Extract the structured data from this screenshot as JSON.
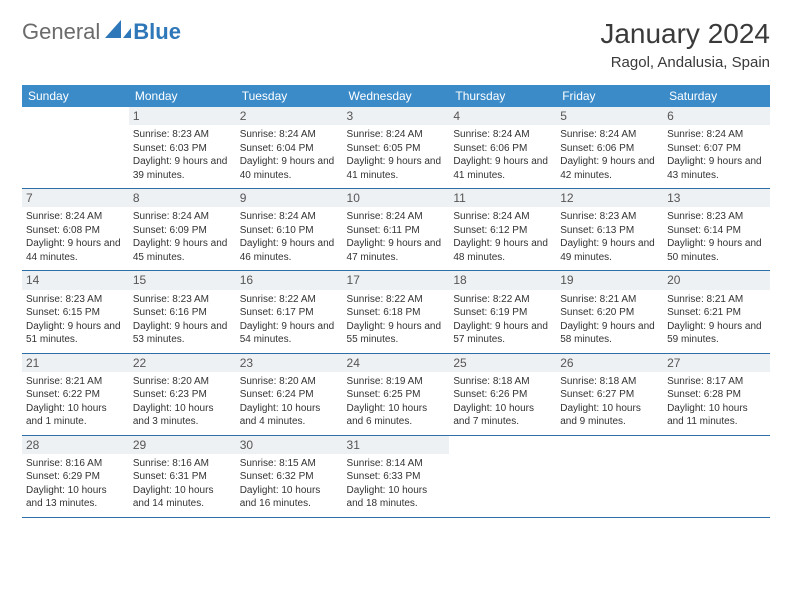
{
  "brand": {
    "part1": "General",
    "part2": "Blue"
  },
  "title": "January 2024",
  "location": "Ragol, Andalusia, Spain",
  "colors": {
    "header_bg": "#3b8bc9",
    "header_fg": "#ffffff",
    "row_border": "#2f6ea6",
    "daynum_bg": "#eef1f3",
    "logo_blue": "#2e77b8",
    "logo_gray": "#6b6b6b"
  },
  "daysOfWeek": [
    "Sunday",
    "Monday",
    "Tuesday",
    "Wednesday",
    "Thursday",
    "Friday",
    "Saturday"
  ],
  "startOffset": 1,
  "cells": [
    {
      "n": 1,
      "sr": "8:23 AM",
      "ss": "6:03 PM",
      "dl": "9 hours and 39 minutes."
    },
    {
      "n": 2,
      "sr": "8:24 AM",
      "ss": "6:04 PM",
      "dl": "9 hours and 40 minutes."
    },
    {
      "n": 3,
      "sr": "8:24 AM",
      "ss": "6:05 PM",
      "dl": "9 hours and 41 minutes."
    },
    {
      "n": 4,
      "sr": "8:24 AM",
      "ss": "6:06 PM",
      "dl": "9 hours and 41 minutes."
    },
    {
      "n": 5,
      "sr": "8:24 AM",
      "ss": "6:06 PM",
      "dl": "9 hours and 42 minutes."
    },
    {
      "n": 6,
      "sr": "8:24 AM",
      "ss": "6:07 PM",
      "dl": "9 hours and 43 minutes."
    },
    {
      "n": 7,
      "sr": "8:24 AM",
      "ss": "6:08 PM",
      "dl": "9 hours and 44 minutes."
    },
    {
      "n": 8,
      "sr": "8:24 AM",
      "ss": "6:09 PM",
      "dl": "9 hours and 45 minutes."
    },
    {
      "n": 9,
      "sr": "8:24 AM",
      "ss": "6:10 PM",
      "dl": "9 hours and 46 minutes."
    },
    {
      "n": 10,
      "sr": "8:24 AM",
      "ss": "6:11 PM",
      "dl": "9 hours and 47 minutes."
    },
    {
      "n": 11,
      "sr": "8:24 AM",
      "ss": "6:12 PM",
      "dl": "9 hours and 48 minutes."
    },
    {
      "n": 12,
      "sr": "8:23 AM",
      "ss": "6:13 PM",
      "dl": "9 hours and 49 minutes."
    },
    {
      "n": 13,
      "sr": "8:23 AM",
      "ss": "6:14 PM",
      "dl": "9 hours and 50 minutes."
    },
    {
      "n": 14,
      "sr": "8:23 AM",
      "ss": "6:15 PM",
      "dl": "9 hours and 51 minutes."
    },
    {
      "n": 15,
      "sr": "8:23 AM",
      "ss": "6:16 PM",
      "dl": "9 hours and 53 minutes."
    },
    {
      "n": 16,
      "sr": "8:22 AM",
      "ss": "6:17 PM",
      "dl": "9 hours and 54 minutes."
    },
    {
      "n": 17,
      "sr": "8:22 AM",
      "ss": "6:18 PM",
      "dl": "9 hours and 55 minutes."
    },
    {
      "n": 18,
      "sr": "8:22 AM",
      "ss": "6:19 PM",
      "dl": "9 hours and 57 minutes."
    },
    {
      "n": 19,
      "sr": "8:21 AM",
      "ss": "6:20 PM",
      "dl": "9 hours and 58 minutes."
    },
    {
      "n": 20,
      "sr": "8:21 AM",
      "ss": "6:21 PM",
      "dl": "9 hours and 59 minutes."
    },
    {
      "n": 21,
      "sr": "8:21 AM",
      "ss": "6:22 PM",
      "dl": "10 hours and 1 minute."
    },
    {
      "n": 22,
      "sr": "8:20 AM",
      "ss": "6:23 PM",
      "dl": "10 hours and 3 minutes."
    },
    {
      "n": 23,
      "sr": "8:20 AM",
      "ss": "6:24 PM",
      "dl": "10 hours and 4 minutes."
    },
    {
      "n": 24,
      "sr": "8:19 AM",
      "ss": "6:25 PM",
      "dl": "10 hours and 6 minutes."
    },
    {
      "n": 25,
      "sr": "8:18 AM",
      "ss": "6:26 PM",
      "dl": "10 hours and 7 minutes."
    },
    {
      "n": 26,
      "sr": "8:18 AM",
      "ss": "6:27 PM",
      "dl": "10 hours and 9 minutes."
    },
    {
      "n": 27,
      "sr": "8:17 AM",
      "ss": "6:28 PM",
      "dl": "10 hours and 11 minutes."
    },
    {
      "n": 28,
      "sr": "8:16 AM",
      "ss": "6:29 PM",
      "dl": "10 hours and 13 minutes."
    },
    {
      "n": 29,
      "sr": "8:16 AM",
      "ss": "6:31 PM",
      "dl": "10 hours and 14 minutes."
    },
    {
      "n": 30,
      "sr": "8:15 AM",
      "ss": "6:32 PM",
      "dl": "10 hours and 16 minutes."
    },
    {
      "n": 31,
      "sr": "8:14 AM",
      "ss": "6:33 PM",
      "dl": "10 hours and 18 minutes."
    }
  ],
  "labels": {
    "sunrise": "Sunrise:",
    "sunset": "Sunset:",
    "daylight": "Daylight:"
  }
}
